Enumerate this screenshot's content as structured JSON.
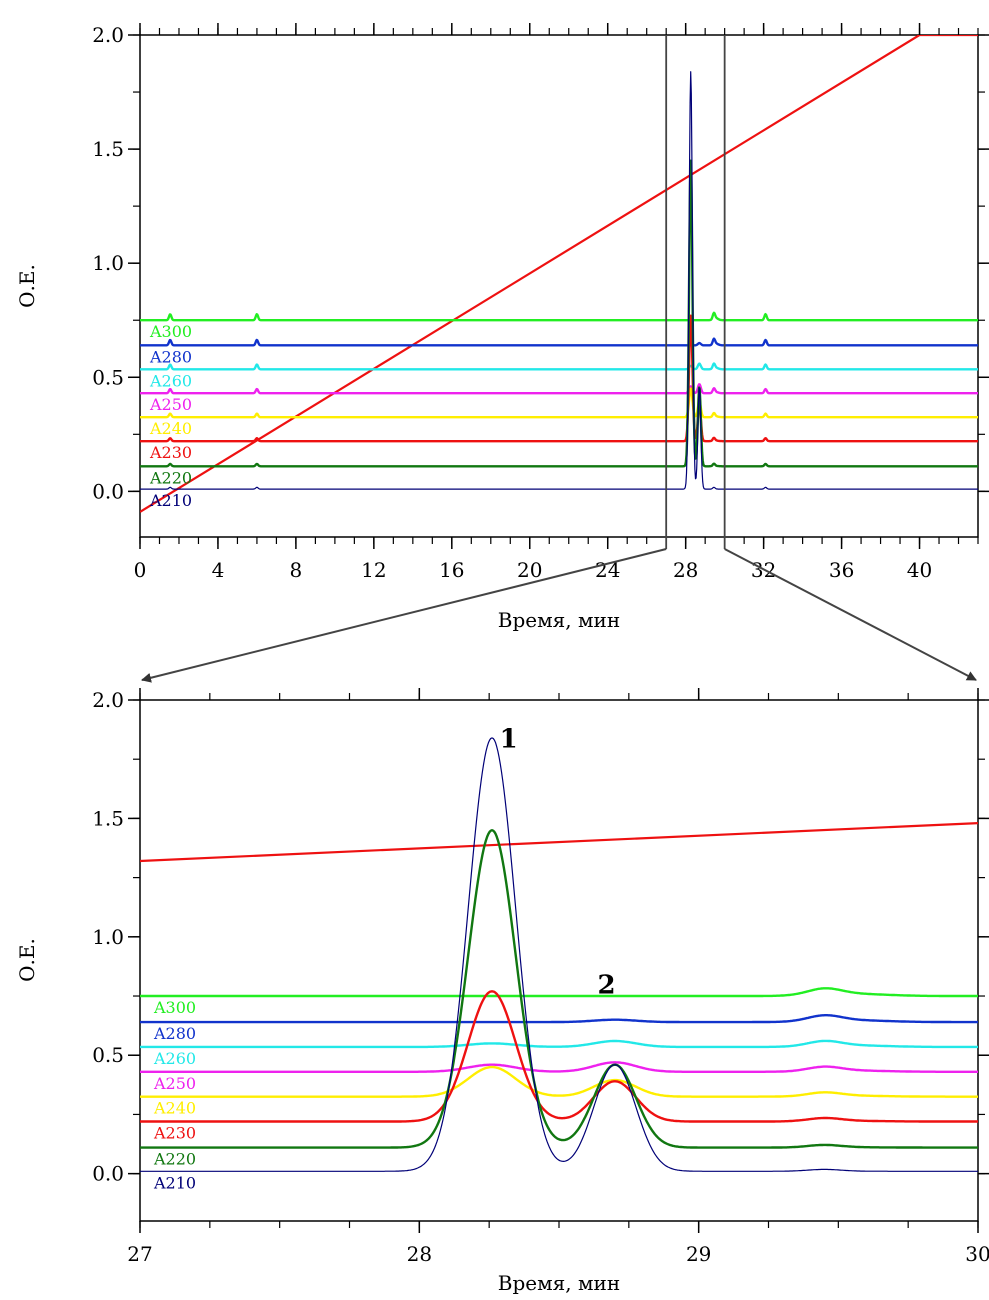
{
  "chart_data": [
    {
      "type": "line",
      "xlabel": "Время, мин",
      "ylabel": "О.Е.",
      "xlim": [
        0,
        43
      ],
      "ylim": [
        -0.2,
        2.0
      ],
      "xticks": [
        "0",
        "4",
        "8",
        "12",
        "16",
        "20",
        "24",
        "28",
        "32",
        "36",
        "40"
      ],
      "yticks": [
        "0.0",
        "0.5",
        "1.0",
        "1.5",
        "2.0"
      ],
      "zoom_window": [
        27,
        30
      ],
      "gradient": {
        "points": [
          [
            0,
            -0.09
          ],
          [
            40,
            2.0
          ],
          [
            43,
            2.0
          ]
        ]
      },
      "series": [
        {
          "name": "A300",
          "color": "#22ee22",
          "offset": 0.75,
          "peak1": 0.0,
          "peak2": 0.0
        },
        {
          "name": "A280",
          "color": "#1133cc",
          "offset": 0.64,
          "peak1": 0.0,
          "peak2": 0.01
        },
        {
          "name": "A260",
          "color": "#22e8e8",
          "offset": 0.535,
          "peak1": 0.015,
          "peak2": 0.025
        },
        {
          "name": "A250",
          "color": "#ee22ee",
          "offset": 0.43,
          "peak1": 0.03,
          "peak2": 0.04
        },
        {
          "name": "A240",
          "color": "#ffee00",
          "offset": 0.325,
          "peak1": 0.125,
          "peak2": 0.07
        },
        {
          "name": "A230",
          "color": "#ee1111",
          "offset": 0.22,
          "peak1": 0.55,
          "peak2": 0.17
        },
        {
          "name": "A220",
          "color": "#117711",
          "offset": 0.11,
          "peak1": 1.34,
          "peak2": 0.35
        },
        {
          "name": "A210",
          "color": "#000077",
          "offset": 0.01,
          "peak1": 1.83,
          "peak2": 0.45
        }
      ]
    },
    {
      "type": "line",
      "xlabel": "Время, мин",
      "ylabel": "О.Е.",
      "xlim": [
        27,
        30
      ],
      "ylim": [
        -0.2,
        2.0
      ],
      "xticks": [
        "27",
        "28",
        "29",
        "30"
      ],
      "yticks": [
        "0.0",
        "0.5",
        "1.0",
        "1.5",
        "2.0"
      ],
      "gradient": {
        "points": [
          [
            27,
            1.32
          ],
          [
            30,
            1.48
          ]
        ]
      },
      "peak_labels": [
        {
          "text": "1",
          "x": 28.32,
          "y": 1.8
        },
        {
          "text": "2",
          "x": 28.67,
          "y": 0.76
        }
      ],
      "series": [
        {
          "name": "A300",
          "color": "#22ee22",
          "offset": 0.75,
          "peak1": 0.0,
          "peak2": 0.0
        },
        {
          "name": "A280",
          "color": "#1133cc",
          "offset": 0.64,
          "peak1": 0.0,
          "peak2": 0.01
        },
        {
          "name": "A260",
          "color": "#22e8e8",
          "offset": 0.535,
          "peak1": 0.015,
          "peak2": 0.025
        },
        {
          "name": "A250",
          "color": "#ee22ee",
          "offset": 0.43,
          "peak1": 0.03,
          "peak2": 0.04
        },
        {
          "name": "A240",
          "color": "#ffee00",
          "offset": 0.325,
          "peak1": 0.125,
          "peak2": 0.07
        },
        {
          "name": "A230",
          "color": "#ee1111",
          "offset": 0.22,
          "peak1": 0.55,
          "peak2": 0.17
        },
        {
          "name": "A220",
          "color": "#117711",
          "offset": 0.11,
          "peak1": 1.34,
          "peak2": 0.35
        },
        {
          "name": "A210",
          "color": "#000077",
          "offset": 0.01,
          "peak1": 1.83,
          "peak2": 0.45
        }
      ]
    }
  ]
}
